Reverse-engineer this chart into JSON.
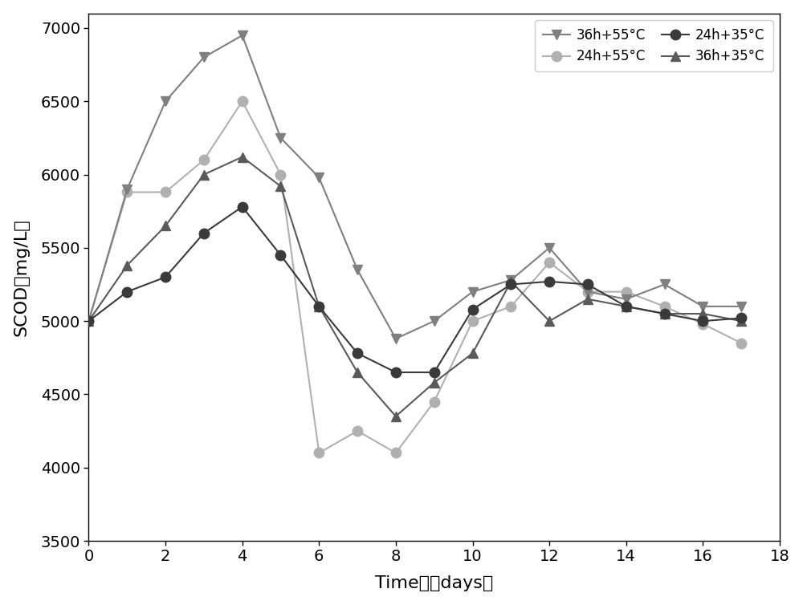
{
  "series": {
    "36h+55C": {
      "x": [
        0,
        1,
        2,
        3,
        4,
        5,
        6,
        7,
        8,
        9,
        10,
        11,
        12,
        13,
        14,
        15,
        16,
        17
      ],
      "y": [
        5000,
        5900,
        6500,
        6800,
        6950,
        6250,
        5980,
        5350,
        4880,
        5000,
        5200,
        5280,
        5500,
        5200,
        5150,
        5250,
        5100,
        5100
      ],
      "color": "#7f7f7f",
      "marker": "v",
      "markersize": 9,
      "label": "36h+55°C",
      "zorder": 3
    },
    "24h+55C": {
      "x": [
        0,
        1,
        2,
        3,
        4,
        5,
        6,
        7,
        8,
        9,
        10,
        11,
        12,
        13,
        14,
        15,
        16,
        17
      ],
      "y": [
        5000,
        5880,
        5880,
        6100,
        6500,
        6000,
        4100,
        4250,
        4100,
        4450,
        5000,
        5100,
        5400,
        5200,
        5200,
        5100,
        4980,
        4850
      ],
      "color": "#b0b0b0",
      "marker": "o",
      "markersize": 9,
      "label": "24h+55°C",
      "zorder": 2
    },
    "24h+35C": {
      "x": [
        0,
        1,
        2,
        3,
        4,
        5,
        6,
        7,
        8,
        9,
        10,
        11,
        12,
        13,
        14,
        15,
        16,
        17
      ],
      "y": [
        5000,
        5200,
        5300,
        5600,
        5780,
        5450,
        5100,
        4780,
        4650,
        4650,
        5080,
        5250,
        5270,
        5250,
        5100,
        5050,
        5000,
        5020
      ],
      "color": "#3a3a3a",
      "marker": "o",
      "markersize": 9,
      "label": "24h+35°C",
      "zorder": 4
    },
    "36h+35C": {
      "x": [
        0,
        1,
        2,
        3,
        4,
        5,
        6,
        7,
        8,
        9,
        10,
        11,
        12,
        13,
        14,
        15,
        16,
        17
      ],
      "y": [
        5000,
        5380,
        5650,
        6000,
        6120,
        5920,
        5100,
        4650,
        4350,
        4580,
        4780,
        5270,
        5000,
        5150,
        5100,
        5050,
        5050,
        5000
      ],
      "color": "#5a5a5a",
      "marker": "^",
      "markersize": 9,
      "label": "36h+35°C",
      "zorder": 3
    }
  },
  "xlabel": "Time  （days）",
  "ylabel": "SCOD（mg/L）",
  "xlim": [
    0,
    18
  ],
  "ylim": [
    3500,
    7100
  ],
  "xticks": [
    0,
    2,
    4,
    6,
    8,
    10,
    12,
    14,
    16,
    18
  ],
  "yticks": [
    3500,
    4000,
    4500,
    5000,
    5500,
    6000,
    6500,
    7000
  ],
  "background_color": "#ffffff",
  "linewidth": 1.5,
  "label_fontsize": 16,
  "tick_fontsize": 14,
  "legend_fontsize": 12
}
